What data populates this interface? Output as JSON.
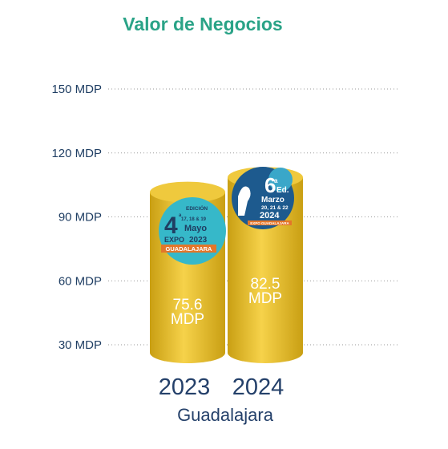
{
  "chart_data": {
    "type": "bar",
    "title": "Valor de Negocios",
    "subtitle": "Guadalajara",
    "categories": [
      "2023",
      "2024"
    ],
    "values": [
      75.6,
      82.5
    ],
    "value_labels": [
      [
        "75.6",
        "MDP"
      ],
      [
        "82.5",
        "MDP"
      ]
    ],
    "yticks": [
      {
        "value": 30,
        "label": "30 MDP"
      },
      {
        "value": 60,
        "label": "60 MDP"
      },
      {
        "value": 90,
        "label": "90 MDP"
      },
      {
        "value": 120,
        "label": "120 MDP"
      },
      {
        "value": 150,
        "label": "150 MDP"
      }
    ],
    "ylim": [
      0,
      150
    ],
    "grid": true,
    "colors": {
      "title": "#2aa387",
      "axis_text": "#1f3e63",
      "bar_light": "#f6d24a",
      "bar_dark": "#c99f13",
      "bar_top": "#efc93d"
    }
  },
  "badges": [
    {
      "category": "2023",
      "lines": [
        "EDICIÓN",
        "17, 18 & 19",
        "Mayo",
        "EXPO",
        "2023",
        "GUADALAJARA"
      ],
      "number": "4",
      "superscript": "a",
      "colors": {
        "circle": "#36b8c9",
        "text": "#1f3e63",
        "band": "#e3762a"
      }
    },
    {
      "category": "2024",
      "lines": [
        "Ed.",
        "Marzo",
        "20, 21 & 22",
        "2024",
        "EXPO GUADALAJARA"
      ],
      "number": "6",
      "superscript": "a",
      "colors": {
        "circle": "#1d5a8e",
        "accent": "#3aa7c9",
        "text": "#ffffff",
        "band": "#e3762a"
      }
    }
  ]
}
